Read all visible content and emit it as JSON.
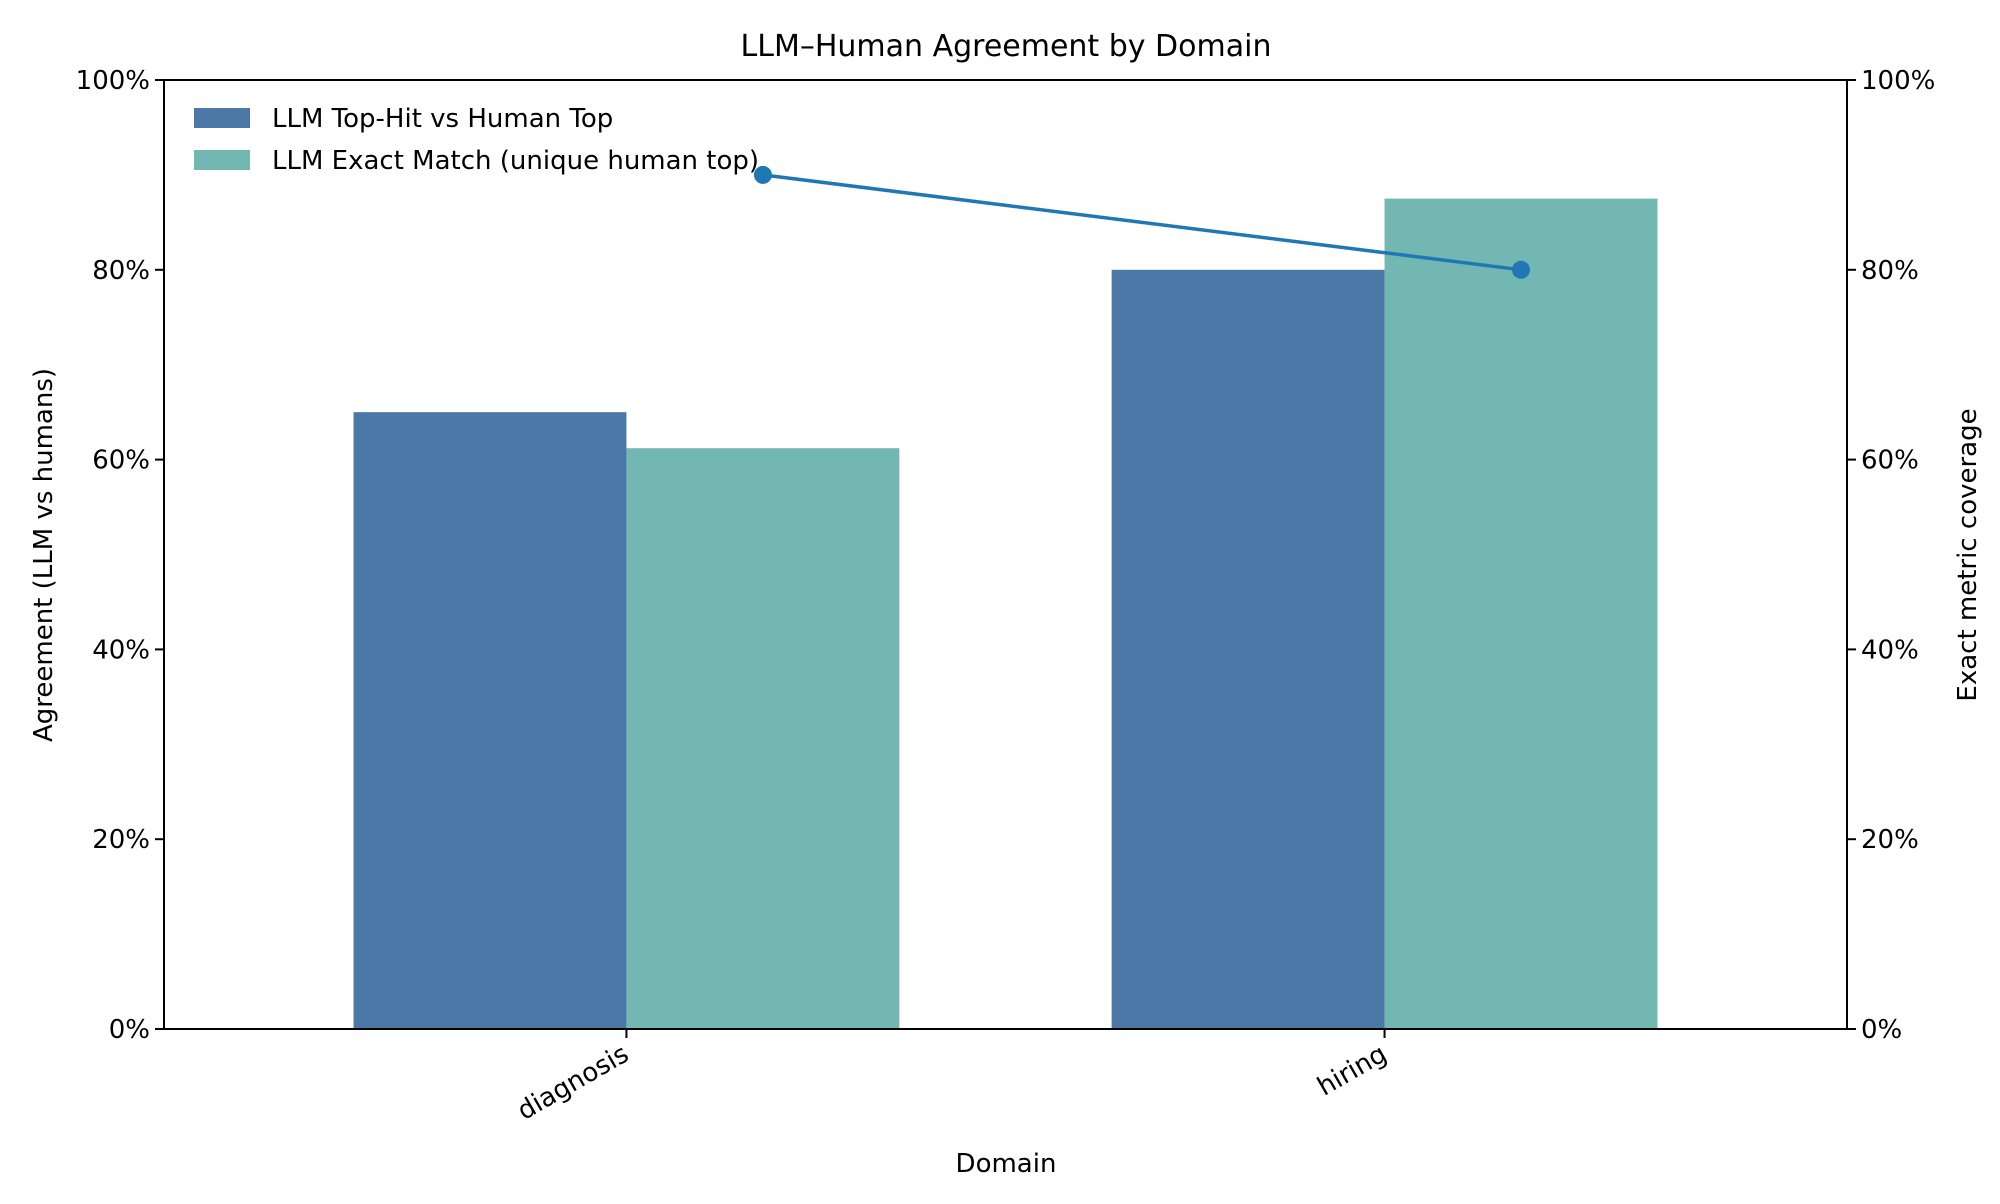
{
  "chart_data": {
    "type": "bar",
    "title": "LLM–Human Agreement by Domain",
    "xlabel": "Domain",
    "ylabel": "Agreement (LLM vs humans)",
    "y2label": "Exact metric coverage",
    "categories": [
      "diagnosis",
      "hiring"
    ],
    "ylim": [
      0,
      100
    ],
    "y2lim": [
      0,
      100
    ],
    "yticks": [
      "0%",
      "20%",
      "40%",
      "60%",
      "80%",
      "100%"
    ],
    "ytick_values": [
      0,
      20,
      40,
      60,
      80,
      100
    ],
    "y2ticks": [
      "0%",
      "20%",
      "40%",
      "60%",
      "80%",
      "100%"
    ],
    "y2tick_values": [
      0,
      20,
      40,
      60,
      80,
      100
    ],
    "grid": false,
    "legend_position": "top-left",
    "series": [
      {
        "name": "LLM Top-Hit vs Human Top",
        "type": "bar",
        "axis": "left",
        "color": "#4c78a8",
        "values": [
          65,
          80
        ]
      },
      {
        "name": "LLM Exact Match (unique human top)",
        "type": "bar",
        "axis": "left",
        "color": "#72b7b2",
        "values": [
          61.2,
          87.5
        ]
      },
      {
        "type": "line",
        "axis": "right",
        "color": "#1f77b4",
        "marker": "circle",
        "values": [
          90,
          80
        ]
      }
    ]
  }
}
